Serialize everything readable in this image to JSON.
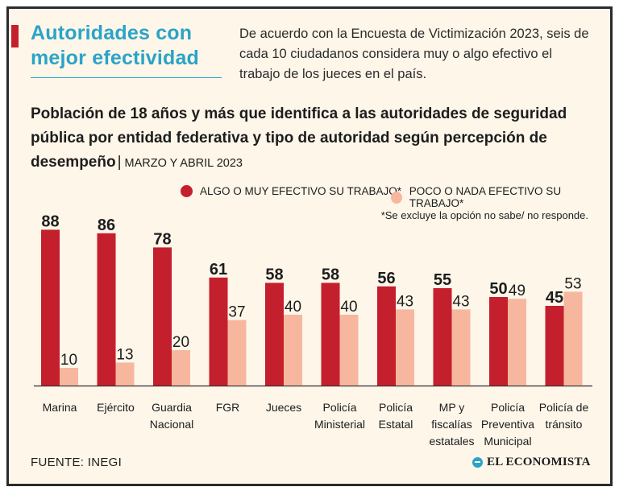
{
  "header": {
    "title": "Autoridades con mejor efectividad",
    "description": "De acuerdo con la Encuesta de Victimización 2023, seis de cada 10 ciudadanos considera muy o algo efectivo el trabajo de los jueces en el país."
  },
  "colors": {
    "accent": "#c41f2d",
    "title_blue": "#2aa4c8",
    "effective": "#c41f2d",
    "not_effective": "#f7b79f",
    "background": "#fdf6e9"
  },
  "chart_data": {
    "type": "bar",
    "title": "Población de 18 años y más que identifica a las autoridades de seguridad pública por entidad federativa y tipo de autoridad según percepción de desempeño",
    "subtitle": "MARZO Y ABRIL 2023",
    "categories": [
      [
        "Marina"
      ],
      [
        "Ejército"
      ],
      [
        "Guardia",
        "Nacional"
      ],
      [
        "FGR"
      ],
      [
        "Jueces"
      ],
      [
        "Policía",
        "Ministerial"
      ],
      [
        "Policía",
        "Estatal"
      ],
      [
        "MP y",
        "fiscalías",
        "estatales"
      ],
      [
        "Policía",
        "Preventiva",
        "Municipal"
      ],
      [
        "Policía de",
        "tránsito"
      ]
    ],
    "series": [
      {
        "name": "ALGO O MUY EFECTIVO SU TRABAJO*",
        "values": [
          88,
          86,
          78,
          61,
          58,
          58,
          56,
          55,
          50,
          45
        ]
      },
      {
        "name": "POCO O NADA EFECTIVO SU TRABAJO*",
        "values": [
          10,
          13,
          20,
          37,
          40,
          40,
          43,
          43,
          49,
          53
        ]
      }
    ],
    "ylim": [
      0,
      100
    ],
    "grid": false,
    "legend_position": "top-right",
    "note": "*Se excluye la opción no sabe/ no responde."
  },
  "footer": {
    "source": "FUENTE: INEGI",
    "brand": "EL ECONOMISTA"
  }
}
